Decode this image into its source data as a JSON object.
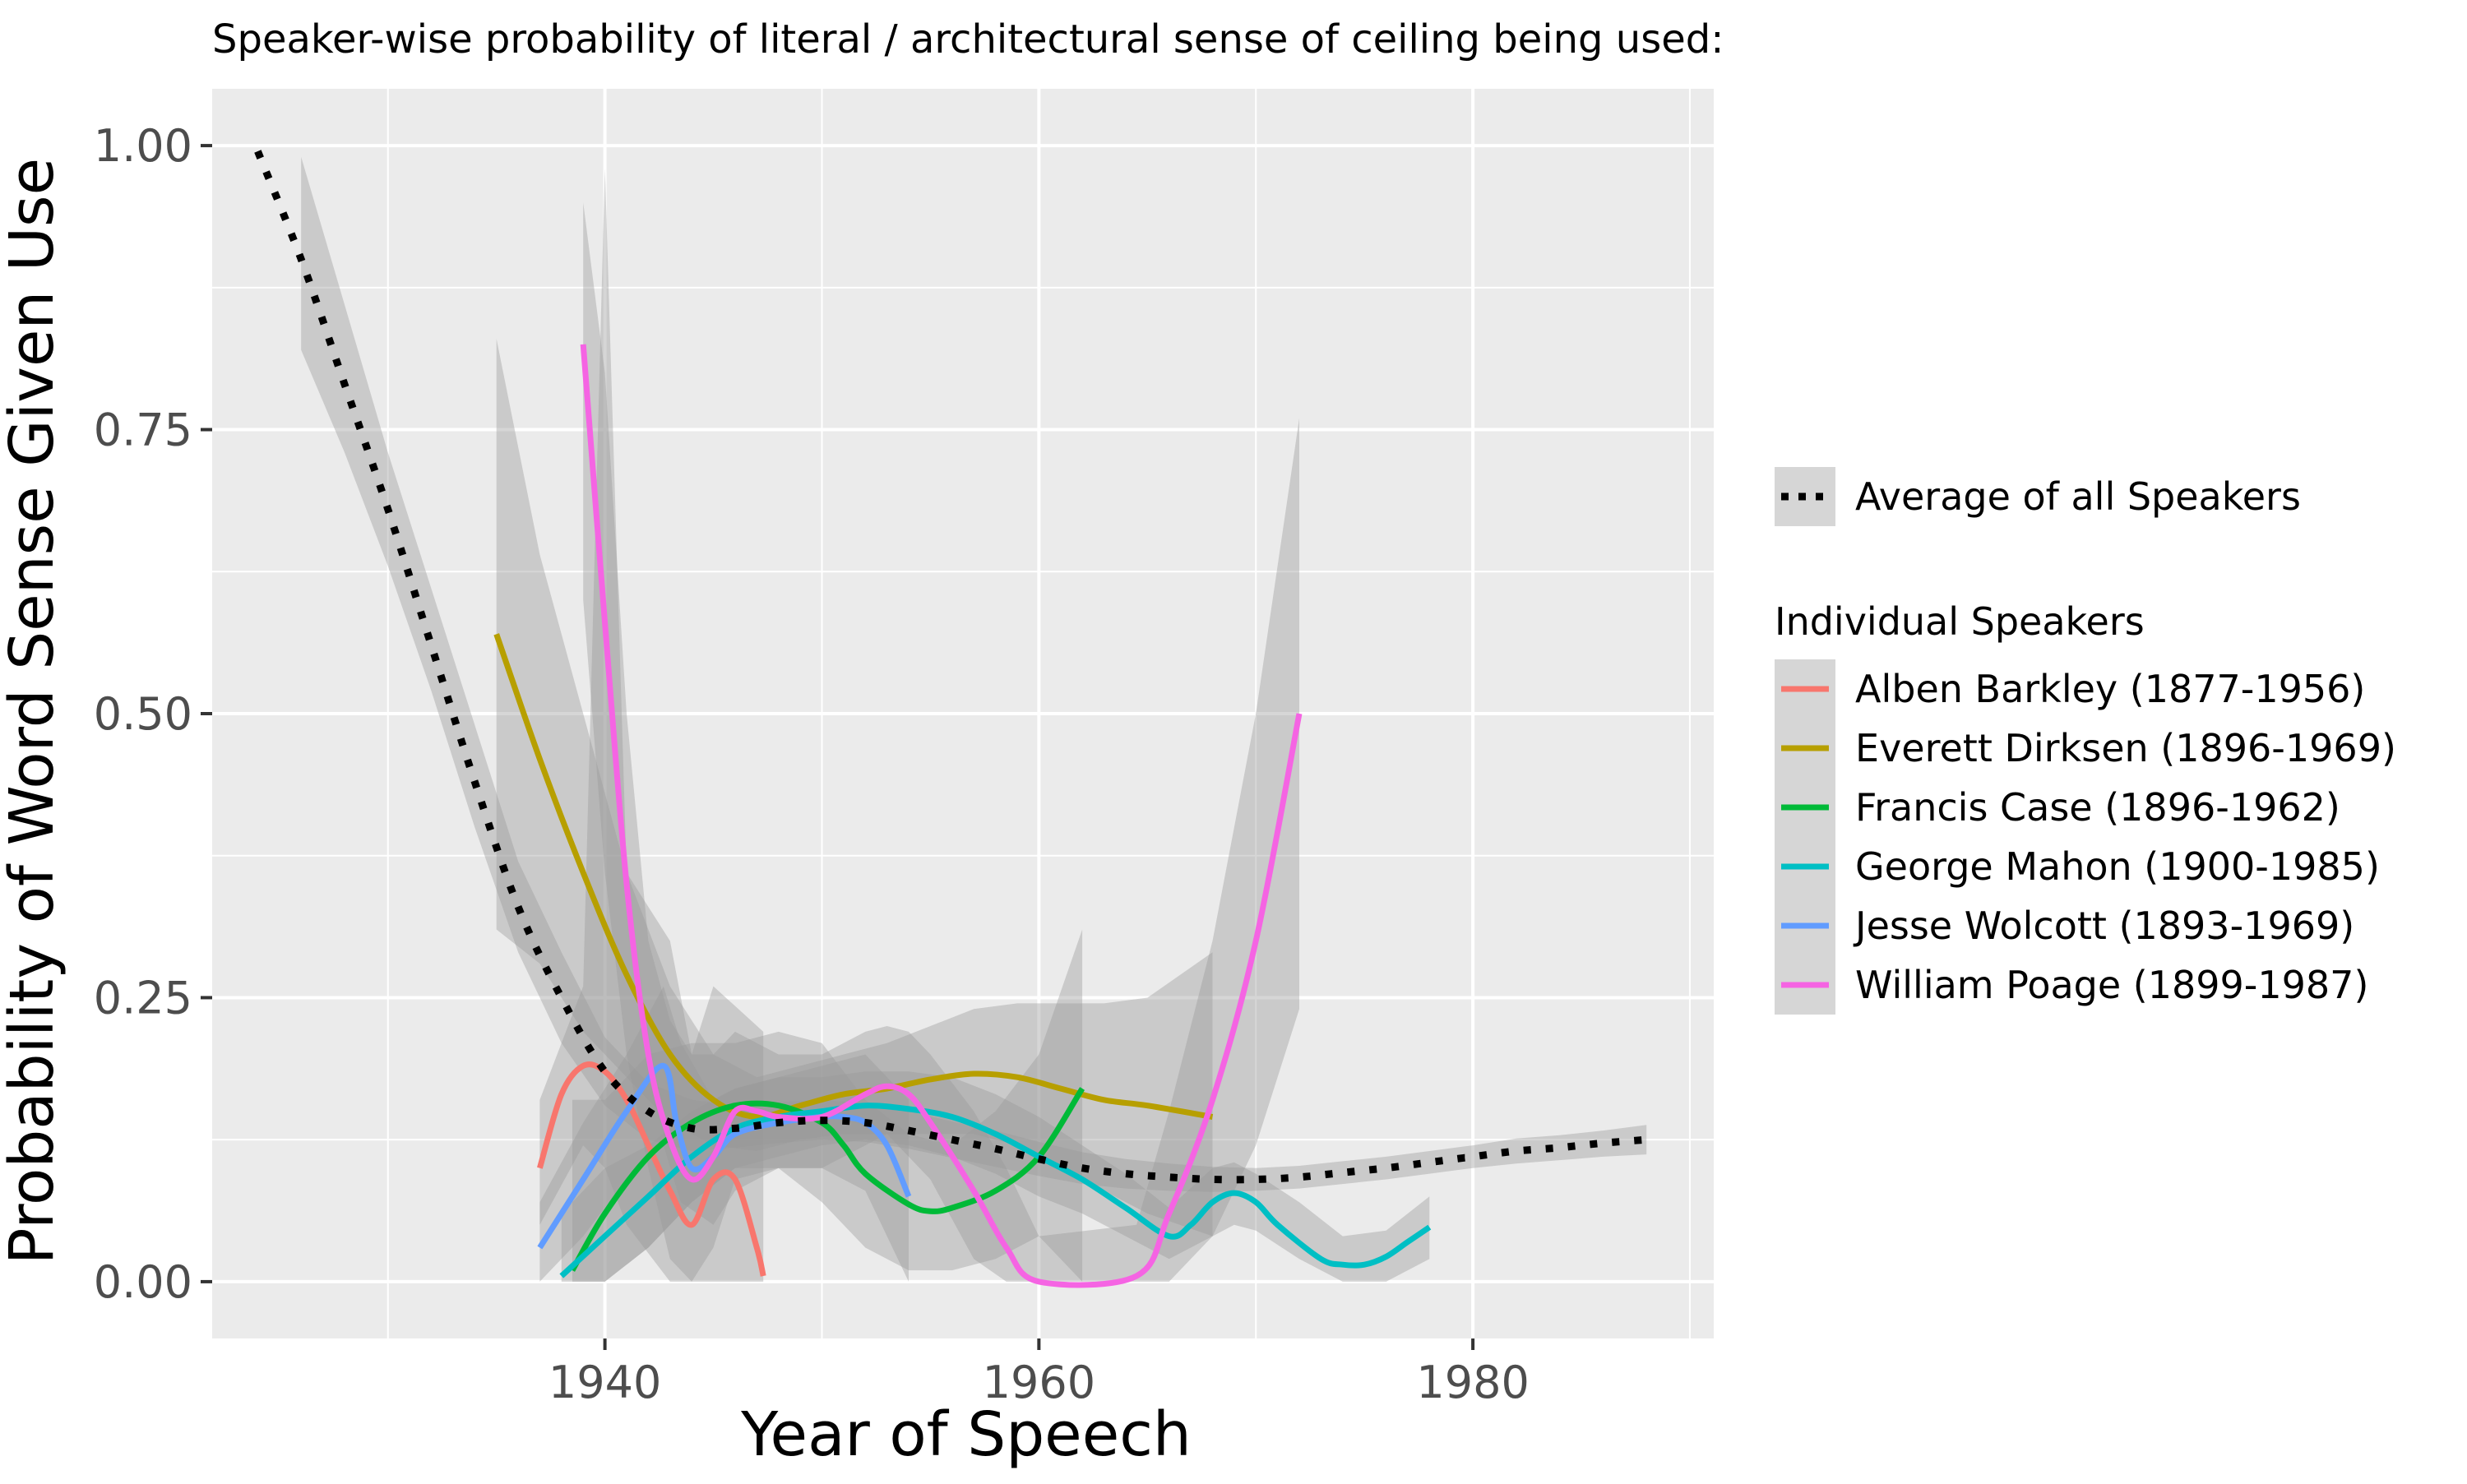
{
  "chart_data": {
    "type": "line",
    "title": "Speaker-wise probability of literal / architectural sense of ceiling being used:",
    "xlabel": "Year of Speech",
    "ylabel": "Probability of Word Sense Given Use",
    "xlim": [
      1921.9,
      1991.1
    ],
    "ylim": [
      -0.05,
      1.05
    ],
    "x_ticks": [
      1940,
      1960,
      1980
    ],
    "y_ticks": [
      0.0,
      0.25,
      0.5,
      0.75,
      1.0
    ],
    "y_tick_labels": [
      "0.00",
      "0.25",
      "0.50",
      "0.75",
      "1.00"
    ],
    "grid": true,
    "legend_position": "right",
    "colors": {
      "panel": "#ebebeb",
      "grid": "#ffffff",
      "ribbon": "#999999",
      "average": "#000000"
    },
    "average": {
      "name": "Average of all Speakers",
      "color": "#000000",
      "style": "dotted",
      "points": [
        [
          1924,
          0.995
        ],
        [
          1926,
          0.9
        ],
        [
          1928,
          0.79
        ],
        [
          1930,
          0.68
        ],
        [
          1932,
          0.56
        ],
        [
          1934,
          0.44
        ],
        [
          1936,
          0.33
        ],
        [
          1938,
          0.25
        ],
        [
          1940,
          0.185
        ],
        [
          1942,
          0.15
        ],
        [
          1944,
          0.135
        ],
        [
          1946,
          0.135
        ],
        [
          1948,
          0.14
        ],
        [
          1950,
          0.142
        ],
        [
          1952,
          0.14
        ],
        [
          1954,
          0.133
        ],
        [
          1956,
          0.125
        ],
        [
          1958,
          0.117
        ],
        [
          1960,
          0.108
        ],
        [
          1962,
          0.1
        ],
        [
          1964,
          0.095
        ],
        [
          1966,
          0.092
        ],
        [
          1968,
          0.09
        ],
        [
          1970,
          0.09
        ],
        [
          1972,
          0.092
        ],
        [
          1974,
          0.096
        ],
        [
          1976,
          0.1
        ],
        [
          1978,
          0.105
        ],
        [
          1980,
          0.11
        ],
        [
          1982,
          0.115
        ],
        [
          1984,
          0.118
        ],
        [
          1986,
          0.122
        ],
        [
          1988,
          0.125
        ]
      ],
      "ribbon": [
        [
          1926,
          0.82,
          0.99
        ],
        [
          1928,
          0.73,
          0.86
        ],
        [
          1930,
          0.63,
          0.73
        ],
        [
          1932,
          0.52,
          0.61
        ],
        [
          1934,
          0.4,
          0.49
        ],
        [
          1936,
          0.29,
          0.37
        ],
        [
          1938,
          0.21,
          0.29
        ],
        [
          1940,
          0.155,
          0.215
        ],
        [
          1942,
          0.125,
          0.175
        ],
        [
          1944,
          0.115,
          0.16
        ],
        [
          1946,
          0.118,
          0.155
        ],
        [
          1948,
          0.122,
          0.158
        ],
        [
          1950,
          0.125,
          0.16
        ],
        [
          1952,
          0.123,
          0.157
        ],
        [
          1954,
          0.117,
          0.15
        ],
        [
          1956,
          0.109,
          0.141
        ],
        [
          1958,
          0.101,
          0.133
        ],
        [
          1960,
          0.093,
          0.123
        ],
        [
          1962,
          0.086,
          0.114
        ],
        [
          1964,
          0.082,
          0.108
        ],
        [
          1966,
          0.08,
          0.104
        ],
        [
          1968,
          0.079,
          0.101
        ],
        [
          1970,
          0.08,
          0.1
        ],
        [
          1972,
          0.082,
          0.102
        ],
        [
          1974,
          0.086,
          0.106
        ],
        [
          1976,
          0.09,
          0.11
        ],
        [
          1978,
          0.095,
          0.115
        ],
        [
          1980,
          0.1,
          0.12
        ],
        [
          1982,
          0.104,
          0.126
        ],
        [
          1984,
          0.107,
          0.129
        ],
        [
          1986,
          0.11,
          0.133
        ],
        [
          1988,
          0.112,
          0.138
        ]
      ]
    },
    "legend_title": "Individual Speakers",
    "series": [
      {
        "name": "Alben Barkley (1877-1956)",
        "color": "#f8766d",
        "points": [
          [
            1937,
            0.1
          ],
          [
            1938,
            0.165
          ],
          [
            1939,
            0.19
          ],
          [
            1940,
            0.185
          ],
          [
            1941,
            0.16
          ],
          [
            1942,
            0.12
          ],
          [
            1943,
            0.08
          ],
          [
            1944,
            0.05
          ],
          [
            1945,
            0.09
          ],
          [
            1946,
            0.09
          ],
          [
            1947,
            0.03
          ],
          [
            1947.3,
            0.005
          ]
        ],
        "ribbon": [
          [
            1937,
            0.05,
            0.16
          ],
          [
            1939,
            0.12,
            0.26
          ],
          [
            1940,
            0.1,
            0.98
          ],
          [
            1941,
            0.05,
            0.36
          ],
          [
            1943,
            0.0,
            0.3
          ],
          [
            1944,
            0.0,
            0.2
          ],
          [
            1945,
            0.0,
            0.26
          ],
          [
            1947.3,
            0.0,
            0.22
          ]
        ]
      },
      {
        "name": "Everett Dirksen (1896-1969)",
        "color": "#b79f00",
        "points": [
          [
            1935,
            0.57
          ],
          [
            1937,
            0.46
          ],
          [
            1939,
            0.36
          ],
          [
            1941,
            0.27
          ],
          [
            1943,
            0.2
          ],
          [
            1945,
            0.16
          ],
          [
            1947,
            0.145
          ],
          [
            1949,
            0.155
          ],
          [
            1951,
            0.165
          ],
          [
            1953,
            0.17
          ],
          [
            1955,
            0.178
          ],
          [
            1957,
            0.183
          ],
          [
            1959,
            0.18
          ],
          [
            1961,
            0.17
          ],
          [
            1963,
            0.16
          ],
          [
            1965,
            0.155
          ],
          [
            1968,
            0.145
          ]
        ],
        "ribbon": [
          [
            1935,
            0.31,
            0.83
          ],
          [
            1937,
            0.28,
            0.64
          ],
          [
            1939,
            0.22,
            0.5
          ],
          [
            1941,
            0.18,
            0.36
          ],
          [
            1943,
            0.14,
            0.26
          ],
          [
            1945,
            0.12,
            0.2
          ],
          [
            1947,
            0.115,
            0.18
          ],
          [
            1949,
            0.125,
            0.19
          ],
          [
            1951,
            0.13,
            0.2
          ],
          [
            1953,
            0.13,
            0.21
          ],
          [
            1955,
            0.13,
            0.225
          ],
          [
            1957,
            0.13,
            0.24
          ],
          [
            1959,
            0.12,
            0.245
          ],
          [
            1961,
            0.1,
            0.245
          ],
          [
            1963,
            0.08,
            0.245
          ],
          [
            1965,
            0.06,
            0.25
          ],
          [
            1968,
            0.04,
            0.29
          ]
        ]
      },
      {
        "name": "Francis Case (1896-1962)",
        "color": "#00ba38",
        "points": [
          [
            1938.5,
            0.01
          ],
          [
            1940,
            0.06
          ],
          [
            1942,
            0.11
          ],
          [
            1944,
            0.14
          ],
          [
            1946,
            0.155
          ],
          [
            1948,
            0.155
          ],
          [
            1950,
            0.14
          ],
          [
            1951,
            0.12
          ],
          [
            1952,
            0.095
          ],
          [
            1954,
            0.068
          ],
          [
            1955,
            0.062
          ],
          [
            1956,
            0.065
          ],
          [
            1958,
            0.08
          ],
          [
            1960,
            0.11
          ],
          [
            1962,
            0.17
          ]
        ],
        "ribbon": [
          [
            1938.5,
            0.0,
            0.16
          ],
          [
            1940,
            0.0,
            0.16
          ],
          [
            1942,
            0.03,
            0.2
          ],
          [
            1944,
            0.07,
            0.21
          ],
          [
            1946,
            0.1,
            0.21
          ],
          [
            1948,
            0.1,
            0.22
          ],
          [
            1950,
            0.07,
            0.21
          ],
          [
            1952,
            0.03,
            0.16
          ],
          [
            1954,
            0.01,
            0.13
          ],
          [
            1956,
            0.01,
            0.12
          ],
          [
            1958,
            0.02,
            0.15
          ],
          [
            1960,
            0.04,
            0.2
          ],
          [
            1962,
            0.0,
            0.31
          ]
        ]
      },
      {
        "name": "George Mahon (1900-1985)",
        "color": "#00bfc4",
        "points": [
          [
            1938,
            0.005
          ],
          [
            1940,
            0.04
          ],
          [
            1942,
            0.075
          ],
          [
            1944,
            0.11
          ],
          [
            1946,
            0.135
          ],
          [
            1948,
            0.145
          ],
          [
            1950,
            0.15
          ],
          [
            1952,
            0.155
          ],
          [
            1954,
            0.152
          ],
          [
            1956,
            0.145
          ],
          [
            1958,
            0.13
          ],
          [
            1960,
            0.11
          ],
          [
            1962,
            0.09
          ],
          [
            1964,
            0.065
          ],
          [
            1966,
            0.04
          ],
          [
            1967,
            0.05
          ],
          [
            1968,
            0.07
          ],
          [
            1969,
            0.078
          ],
          [
            1970,
            0.07
          ],
          [
            1971,
            0.05
          ],
          [
            1973,
            0.02
          ],
          [
            1974,
            0.015
          ],
          [
            1975,
            0.015
          ],
          [
            1976,
            0.022
          ],
          [
            1977,
            0.035
          ],
          [
            1978,
            0.048
          ]
        ],
        "ribbon": [
          [
            1938,
            0.0,
            0.06
          ],
          [
            1940,
            0.0,
            0.1
          ],
          [
            1942,
            0.03,
            0.12
          ],
          [
            1944,
            0.07,
            0.15
          ],
          [
            1946,
            0.1,
            0.17
          ],
          [
            1948,
            0.11,
            0.18
          ],
          [
            1950,
            0.12,
            0.18
          ],
          [
            1952,
            0.125,
            0.185
          ],
          [
            1954,
            0.12,
            0.185
          ],
          [
            1956,
            0.11,
            0.18
          ],
          [
            1958,
            0.095,
            0.165
          ],
          [
            1960,
            0.075,
            0.145
          ],
          [
            1962,
            0.06,
            0.12
          ],
          [
            1964,
            0.04,
            0.095
          ],
          [
            1966,
            0.02,
            0.065
          ],
          [
            1968,
            0.04,
            0.1
          ],
          [
            1969,
            0.05,
            0.105
          ],
          [
            1970,
            0.045,
            0.095
          ],
          [
            1972,
            0.02,
            0.07
          ],
          [
            1974,
            0.0,
            0.04
          ],
          [
            1976,
            0.0,
            0.045
          ],
          [
            1978,
            0.02,
            0.075
          ]
        ]
      },
      {
        "name": "Jesse Wolcott (1893-1969)",
        "color": "#619cff",
        "points": [
          [
            1937,
            0.03
          ],
          [
            1939,
            0.09
          ],
          [
            1941,
            0.15
          ],
          [
            1942.7,
            0.19
          ],
          [
            1943.3,
            0.14
          ],
          [
            1944,
            0.1
          ],
          [
            1945,
            0.11
          ],
          [
            1946,
            0.13
          ],
          [
            1948,
            0.14
          ],
          [
            1950,
            0.145
          ],
          [
            1951,
            0.145
          ],
          [
            1952,
            0.14
          ],
          [
            1953,
            0.12
          ],
          [
            1954,
            0.075
          ]
        ],
        "ribbon": [
          [
            1937,
            0.0,
            0.07
          ],
          [
            1939,
            0.04,
            0.14
          ],
          [
            1941,
            0.09,
            0.2
          ],
          [
            1942.7,
            0.12,
            0.26
          ],
          [
            1943.5,
            0.07,
            0.21
          ],
          [
            1945,
            0.05,
            0.16
          ],
          [
            1946,
            0.08,
            0.17
          ],
          [
            1948,
            0.1,
            0.18
          ],
          [
            1950,
            0.1,
            0.19
          ],
          [
            1952,
            0.08,
            0.2
          ],
          [
            1954,
            0.0,
            0.16
          ]
        ]
      },
      {
        "name": "William Poage (1899-1987)",
        "color": "#f564e3",
        "points": [
          [
            1939,
            0.825
          ],
          [
            1940,
            0.58
          ],
          [
            1941,
            0.35
          ],
          [
            1942,
            0.2
          ],
          [
            1943,
            0.125
          ],
          [
            1944,
            0.09
          ],
          [
            1945,
            0.11
          ],
          [
            1946,
            0.15
          ],
          [
            1947,
            0.15
          ],
          [
            1948,
            0.145
          ],
          [
            1950,
            0.145
          ],
          [
            1952,
            0.165
          ],
          [
            1953,
            0.172
          ],
          [
            1954,
            0.165
          ],
          [
            1955,
            0.14
          ],
          [
            1957,
            0.08
          ],
          [
            1958.5,
            0.03
          ],
          [
            1960,
            0.0
          ],
          [
            1964.5,
            0.005
          ],
          [
            1966,
            0.06
          ],
          [
            1968,
            0.16
          ],
          [
            1970,
            0.3
          ],
          [
            1972,
            0.5
          ]
        ],
        "ribbon": [
          [
            1939,
            0.6,
            0.95
          ],
          [
            1940,
            0.36,
            0.8
          ],
          [
            1941,
            0.2,
            0.5
          ],
          [
            1942,
            0.1,
            0.3
          ],
          [
            1943,
            0.02,
            0.23
          ],
          [
            1944,
            0.0,
            0.2
          ],
          [
            1945,
            0.03,
            0.2
          ],
          [
            1946,
            0.09,
            0.22
          ],
          [
            1948,
            0.1,
            0.2
          ],
          [
            1950,
            0.1,
            0.2
          ],
          [
            1952,
            0.12,
            0.22
          ],
          [
            1953,
            0.13,
            0.225
          ],
          [
            1954,
            0.11,
            0.22
          ],
          [
            1955,
            0.09,
            0.2
          ],
          [
            1957,
            0.02,
            0.15
          ],
          [
            1958.5,
            0.0,
            0.1
          ],
          [
            1960,
            0.0,
            0.04
          ],
          [
            1964.5,
            0.0,
            0.05
          ],
          [
            1966,
            0.0,
            0.15
          ],
          [
            1968,
            0.04,
            0.3
          ],
          [
            1970,
            0.12,
            0.5
          ],
          [
            1972,
            0.24,
            0.76
          ]
        ]
      }
    ]
  }
}
